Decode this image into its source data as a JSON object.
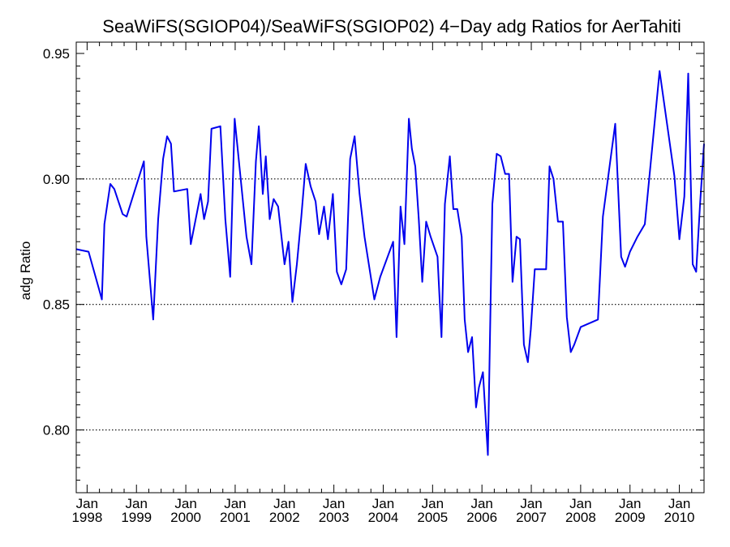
{
  "chart_data": {
    "type": "line",
    "title": "SeaWiFS(SGIOP04)/SeaWiFS(SGIOP02) 4−Day adg Ratios for AerTahiti",
    "xlabel": "",
    "ylabel": "adg Ratio",
    "xlim": [
      1997.78,
      2010.5
    ],
    "ylim": [
      0.775,
      0.9545
    ],
    "y_ticks": [
      {
        "value": 0.8,
        "label": "0.80"
      },
      {
        "value": 0.85,
        "label": "0.85"
      },
      {
        "value": 0.9,
        "label": "0.90"
      },
      {
        "value": 0.95,
        "label": "0.95"
      }
    ],
    "x_ticks": [
      {
        "value": 1998,
        "month": "Jan",
        "year": "1998"
      },
      {
        "value": 1999,
        "month": "Jan",
        "year": "1999"
      },
      {
        "value": 2000,
        "month": "Jan",
        "year": "2000"
      },
      {
        "value": 2001,
        "month": "Jan",
        "year": "2001"
      },
      {
        "value": 2002,
        "month": "Jan",
        "year": "2002"
      },
      {
        "value": 2003,
        "month": "Jan",
        "year": "2003"
      },
      {
        "value": 2004,
        "month": "Jan",
        "year": "2004"
      },
      {
        "value": 2005,
        "month": "Jan",
        "year": "2005"
      },
      {
        "value": 2006,
        "month": "Jan",
        "year": "2006"
      },
      {
        "value": 2007,
        "month": "Jan",
        "year": "2007"
      },
      {
        "value": 2008,
        "month": "Jan",
        "year": "2008"
      },
      {
        "value": 2009,
        "month": "Jan",
        "year": "2009"
      },
      {
        "value": 2010,
        "month": "Jan",
        "year": "2010"
      }
    ],
    "grid_y_dotted": [
      0.8,
      0.85,
      0.9
    ],
    "series": [
      {
        "color": "#0000ee",
        "x": [
          1997.78,
          1998.03,
          1998.3,
          1998.35,
          1998.47,
          1998.55,
          1998.72,
          1998.8,
          1999.15,
          1999.2,
          1999.34,
          1999.44,
          1999.54,
          1999.62,
          1999.7,
          1999.76,
          2000.03,
          2000.1,
          2000.23,
          2000.3,
          2000.37,
          2000.45,
          2000.52,
          2000.7,
          2000.8,
          2000.9,
          2000.99,
          2001.23,
          2001.33,
          2001.42,
          2001.48,
          2001.56,
          2001.62,
          2001.7,
          2001.78,
          2001.87,
          2002.0,
          2002.08,
          2002.16,
          2002.25,
          2002.34,
          2002.43,
          2002.53,
          2002.63,
          2002.7,
          2002.8,
          2002.88,
          2002.98,
          2003.06,
          2003.15,
          2003.25,
          2003.33,
          2003.42,
          2003.52,
          2003.62,
          2003.82,
          2003.94,
          2004.2,
          2004.27,
          2004.35,
          2004.43,
          2004.52,
          2004.58,
          2004.65,
          2004.72,
          2004.79,
          2004.87,
          2004.96,
          2005.1,
          2005.18,
          2005.25,
          2005.35,
          2005.42,
          2005.5,
          2005.59,
          2005.65,
          2005.72,
          2005.8,
          2005.88,
          2005.94,
          2006.02,
          2006.12,
          2006.21,
          2006.3,
          2006.38,
          2006.47,
          2006.55,
          2006.62,
          2006.7,
          2006.77,
          2006.85,
          2006.93,
          2006.99,
          2007.07,
          2007.3,
          2007.37,
          2007.45,
          2007.54,
          2007.64,
          2007.72,
          2007.8,
          2007.87,
          2008.0,
          2008.35,
          2008.45,
          2008.7,
          2008.82,
          2008.9,
          2009.0,
          2009.15,
          2009.3,
          2009.6,
          2009.9,
          2010.0,
          2010.1,
          2010.18,
          2010.27,
          2010.34,
          2010.42,
          2010.5
        ],
        "y": [
          0.872,
          0.871,
          0.852,
          0.882,
          0.898,
          0.896,
          0.886,
          0.885,
          0.907,
          0.877,
          0.844,
          0.884,
          0.908,
          0.917,
          0.914,
          0.895,
          0.896,
          0.874,
          0.887,
          0.894,
          0.884,
          0.891,
          0.92,
          0.921,
          0.884,
          0.861,
          0.924,
          0.877,
          0.866,
          0.907,
          0.921,
          0.894,
          0.909,
          0.884,
          0.892,
          0.889,
          0.866,
          0.875,
          0.851,
          0.866,
          0.885,
          0.906,
          0.897,
          0.891,
          0.878,
          0.889,
          0.876,
          0.894,
          0.863,
          0.858,
          0.864,
          0.908,
          0.917,
          0.894,
          0.877,
          0.852,
          0.861,
          0.875,
          0.837,
          0.889,
          0.874,
          0.924,
          0.912,
          0.905,
          0.884,
          0.859,
          0.883,
          0.877,
          0.869,
          0.837,
          0.89,
          0.909,
          0.888,
          0.888,
          0.877,
          0.844,
          0.831,
          0.837,
          0.809,
          0.817,
          0.823,
          0.79,
          0.89,
          0.91,
          0.909,
          0.902,
          0.902,
          0.859,
          0.877,
          0.876,
          0.834,
          0.827,
          0.84,
          0.864,
          0.864,
          0.905,
          0.9,
          0.883,
          0.883,
          0.845,
          0.831,
          0.834,
          0.841,
          0.844,
          0.885,
          0.922,
          0.869,
          0.865,
          0.871,
          0.877,
          0.882,
          0.943,
          0.901,
          0.876,
          0.893,
          0.942,
          0.866,
          0.863,
          0.89,
          0.914
        ]
      }
    ]
  }
}
